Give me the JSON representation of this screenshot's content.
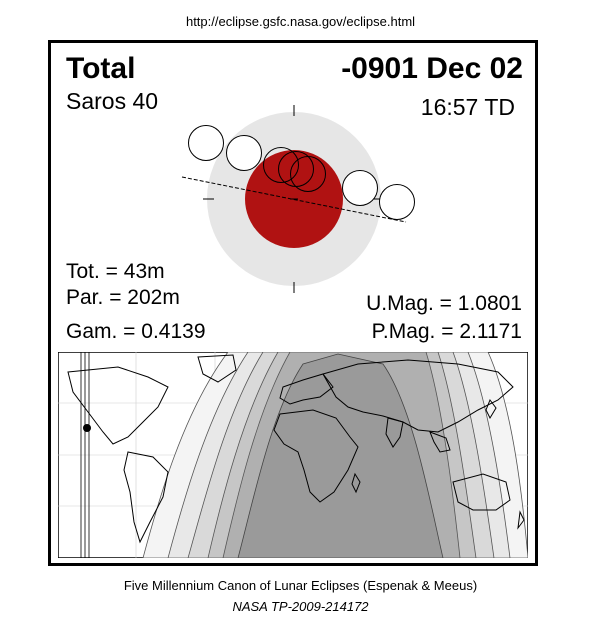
{
  "source_url": "http://eclipse.gsfc.nasa.gov/eclipse.html",
  "header": {
    "eclipse_type": "Total",
    "date": "-0901 Dec 02",
    "saros": "Saros  40",
    "time": "16:57 TD"
  },
  "stats": {
    "totality": "Tot. =  43m",
    "partial": "Par. = 202m",
    "gamma": "Gam. = 0.4139",
    "umbral_magnitude": "U.Mag. = 1.0801",
    "penumbral_magnitude": "P.Mag. = 2.1171"
  },
  "colors": {
    "umbra": "#b01212",
    "penumbra": "#e6e6e6",
    "map_night": "#9a9a9a"
  },
  "footer": {
    "canon": "Five Millennium Canon of Lunar Eclipses (Espenak & Meeus)",
    "publication": "NASA TP-2009-214172"
  }
}
